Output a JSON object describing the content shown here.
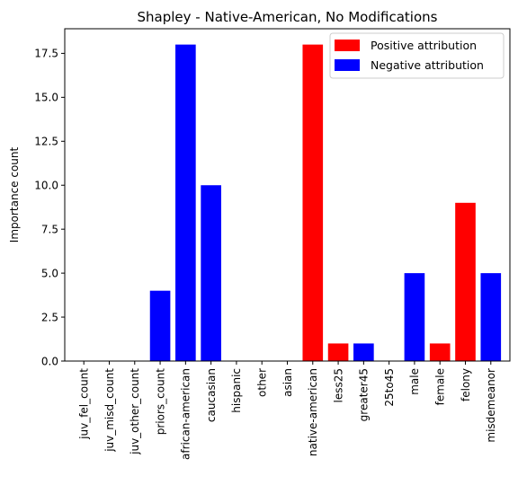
{
  "chart_data": {
    "type": "bar",
    "title": "Shapley - Native-American, No Modifications",
    "xlabel": "",
    "ylabel": "Importance count",
    "ylim": [
      0,
      18.9
    ],
    "yticks": [
      "0.0",
      "2.5",
      "5.0",
      "7.5",
      "10.0",
      "12.5",
      "15.0",
      "17.5"
    ],
    "categories": [
      "juv_fel_count",
      "juv_misd_count",
      "juv_other_count",
      "priors_count",
      "african-american",
      "caucasian",
      "hispanic",
      "other",
      "asian",
      "native-american",
      "less25",
      "greater45",
      "25to45",
      "male",
      "female",
      "felony",
      "misdemeanor"
    ],
    "series": [
      {
        "name": "Positive attribution",
        "color": "#ff0000",
        "values": [
          0,
          0,
          0,
          0,
          0,
          0,
          0,
          0,
          0,
          18,
          1,
          0,
          0,
          0,
          1,
          9,
          0
        ]
      },
      {
        "name": "Negative attribution",
        "color": "#0000ff",
        "values": [
          0,
          0,
          0,
          4,
          18,
          10,
          0,
          0,
          0,
          0,
          0,
          1,
          0,
          5,
          0,
          0,
          5
        ]
      }
    ],
    "grid": false,
    "legend_position": "top-right"
  }
}
